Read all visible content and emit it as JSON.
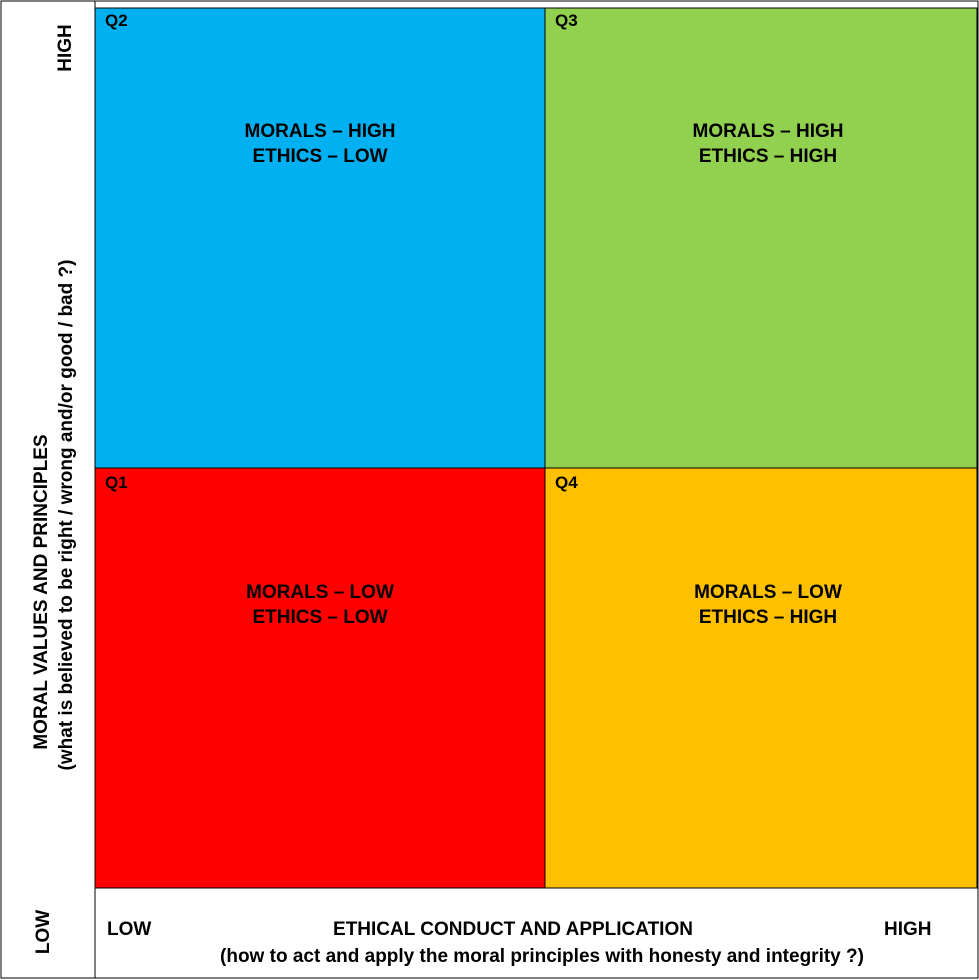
{
  "y_axis": {
    "high_label": "HIGH",
    "low_label": "LOW",
    "title": "MORAL VALUES AND PRINCIPLES",
    "subtitle": "(what is believed to be right / wrong and/or good  / bad ?)"
  },
  "x_axis": {
    "low_label": "LOW",
    "high_label": "HIGH",
    "title": "ETHICAL CONDUCT AND APPLICATION",
    "subtitle": "(how to act and apply the moral principles with honesty and integrity ?)"
  },
  "quadrants": {
    "q2": {
      "id": "Q2",
      "line1": "MORALS – HIGH",
      "line2": "ETHICS – LOW",
      "color": "#00b0f0"
    },
    "q3": {
      "id": "Q3",
      "line1": "MORALS – HIGH",
      "line2": "ETHICS – HIGH",
      "color": "#92d050"
    },
    "q1": {
      "id": "Q1",
      "line1": "MORALS – LOW",
      "line2": "ETHICS – LOW",
      "color": "#ff0000"
    },
    "q4": {
      "id": "Q4",
      "line1": "MORALS – LOW",
      "line2": "ETHICS – HIGH",
      "color": "#ffc000"
    }
  },
  "colors": {
    "border": "#000000",
    "background": "#ffffff"
  }
}
